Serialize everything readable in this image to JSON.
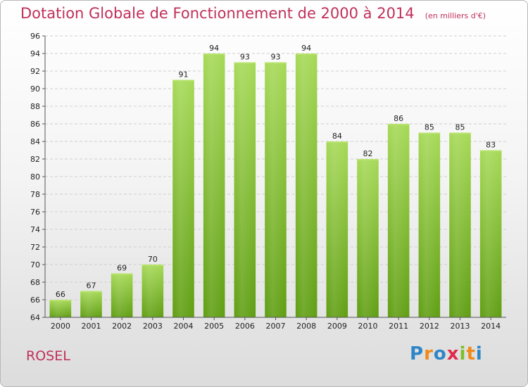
{
  "chart_data": {
    "type": "bar",
    "title": "Dotation Globale de Fonctionnement de 2000 à 2014",
    "subtitle": "(en milliers d'€)",
    "categories": [
      "2000",
      "2001",
      "2002",
      "2003",
      "2004",
      "2005",
      "2006",
      "2007",
      "2008",
      "2009",
      "2010",
      "2011",
      "2012",
      "2013",
      "2014"
    ],
    "values": [
      66,
      67,
      69,
      70,
      91,
      94,
      93,
      93,
      94,
      84,
      82,
      86,
      85,
      85,
      83
    ],
    "ylim": [
      64,
      96
    ],
    "yticks": [
      64,
      66,
      68,
      70,
      72,
      74,
      76,
      78,
      80,
      82,
      84,
      86,
      88,
      90,
      92,
      94,
      96
    ],
    "grid": true,
    "bar_color": "#7dbe2a"
  },
  "place_label": "ROSEL",
  "logo": {
    "letters": [
      "P",
      "r",
      "o",
      "x",
      "i",
      "t",
      "i"
    ],
    "colors": [
      "#2e86c8",
      "#f08a1c",
      "#2e86c8",
      "#e02a4a",
      "#7dbe2a",
      "#f08a1c",
      "#2e86c8"
    ]
  }
}
